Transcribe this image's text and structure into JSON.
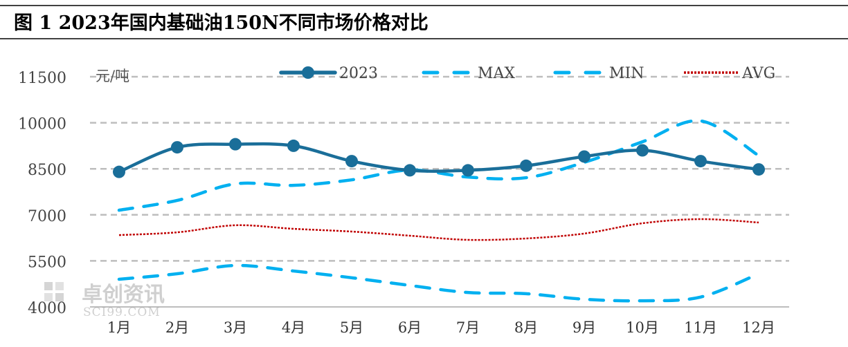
{
  "title": "图 1 2023年国内基础油150N不同市场价格对比",
  "watermark": {
    "name": "卓创资讯",
    "url": "SCI99.COM"
  },
  "chart_data": {
    "type": "line",
    "title": "图 1 2023年国内基础油150N不同市场价格对比",
    "ylabel": "元/吨",
    "xlabel": "",
    "ylim": [
      4000,
      11500
    ],
    "yticks": [
      4000,
      5500,
      7000,
      8500,
      10000,
      11500
    ],
    "grid": true,
    "legend": "top",
    "categories": [
      "1月",
      "2月",
      "3月",
      "4月",
      "5月",
      "6月",
      "7月",
      "8月",
      "9月",
      "10月",
      "11月",
      "12月"
    ],
    "series": [
      {
        "name": "2023",
        "color": "#1a6e99",
        "style": "solid-marker",
        "values": [
          8400,
          9200,
          9300,
          9250,
          8750,
          8450,
          8450,
          8600,
          8900,
          9100,
          8750,
          8480
        ]
      },
      {
        "name": "MAX",
        "color": "#00b0f0",
        "style": "dashed",
        "values": [
          7150,
          7470,
          8010,
          7960,
          8140,
          8460,
          8230,
          8210,
          8710,
          9380,
          10060,
          8930
        ]
      },
      {
        "name": "MIN",
        "color": "#00b0f0",
        "style": "dashed",
        "values": [
          4900,
          5080,
          5350,
          5170,
          4950,
          4700,
          4470,
          4430,
          4250,
          4200,
          4320,
          5080
        ]
      },
      {
        "name": "AVG",
        "color": "#c00000",
        "style": "dotted",
        "values": [
          6340,
          6430,
          6660,
          6545,
          6455,
          6320,
          6185,
          6230,
          6390,
          6725,
          6860,
          6750
        ]
      }
    ]
  }
}
